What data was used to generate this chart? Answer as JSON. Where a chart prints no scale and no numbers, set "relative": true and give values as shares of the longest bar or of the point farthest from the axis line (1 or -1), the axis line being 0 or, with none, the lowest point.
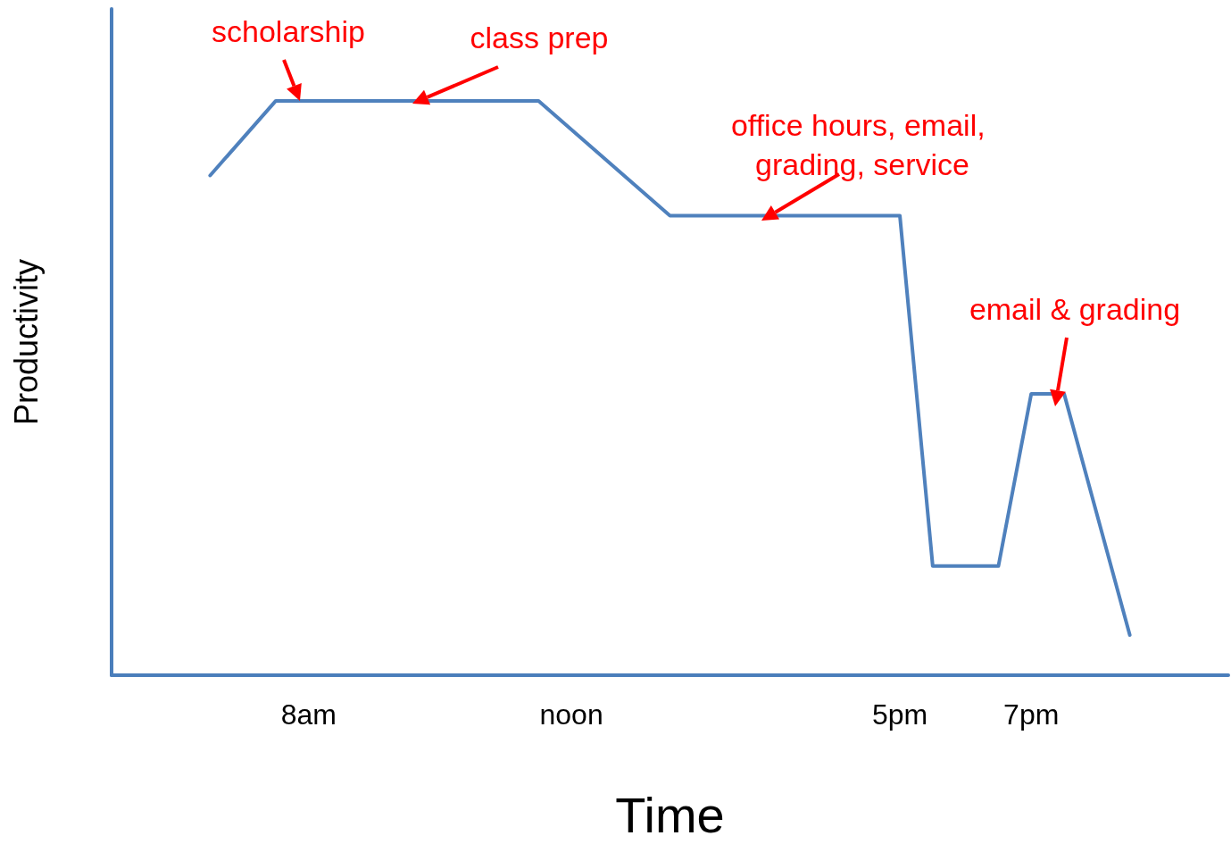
{
  "chart_data": {
    "type": "line",
    "relative": true,
    "xlabel": "Time",
    "ylabel": "Productivity",
    "categories": [
      null,
      null,
      null,
      null,
      null,
      null,
      "8am",
      null,
      null,
      null,
      null,
      null,
      null,
      null,
      "noon",
      null,
      null,
      null,
      null,
      null,
      null,
      null,
      null,
      null,
      "5pm",
      null,
      null,
      null,
      "7pm",
      null,
      null,
      null,
      null,
      null,
      null
    ],
    "series": [
      {
        "color": "#4f81bd",
        "values": [
          null,
          null,
          null,
          0.87,
          null,
          1,
          null,
          null,
          null,
          null,
          null,
          null,
          null,
          1,
          null,
          null,
          null,
          0.8,
          null,
          null,
          null,
          null,
          null,
          null,
          0.8,
          0.19,
          null,
          0.19,
          0.49,
          0.49,
          null,
          0.07,
          null,
          null,
          null
        ]
      }
    ],
    "grid": false,
    "annotations": [
      "scholarship",
      "class prep",
      "office hours, email, grading, service",
      "email & grading"
    ]
  }
}
